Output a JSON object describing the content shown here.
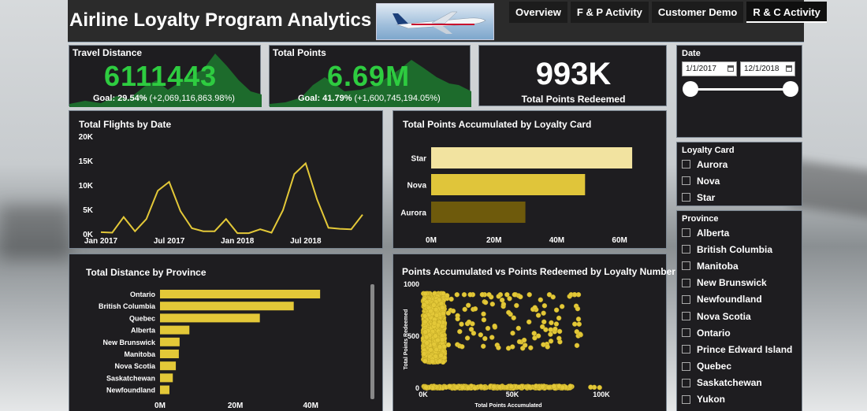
{
  "header": {
    "title": "Airline Loyalty Program Analytics",
    "tabs": [
      {
        "label": "Overview",
        "active": false
      },
      {
        "label": "F & P Activity",
        "active": false
      },
      {
        "label": "Customer Demo",
        "active": false
      },
      {
        "label": "R & C Activity",
        "active": true
      }
    ]
  },
  "kpis": {
    "travel_distance": {
      "label": "Travel Distance",
      "value": "6111443",
      "goal_pct": "Goal: 29.54%",
      "goal_delta": "(+2,069,116,863.98%)"
    },
    "total_points": {
      "label": "Total Points",
      "value": "6.69M",
      "goal_pct": "Goal: 41.79%",
      "goal_delta": "(+1,600,745,194.05%)"
    },
    "points_redeemed": {
      "value": "993K",
      "label": "Total Points Redeemed"
    }
  },
  "filters": {
    "date": {
      "title": "Date",
      "start": "1/1/2017",
      "end": "12/1/2018"
    },
    "loyalty_card": {
      "title": "Loyalty Card",
      "options": [
        "Aurora",
        "Nova",
        "Star"
      ]
    },
    "province": {
      "title": "Province",
      "options": [
        "Alberta",
        "British Columbia",
        "Manitoba",
        "New Brunswick",
        "Newfoundland",
        "Nova Scotia",
        "Ontario",
        "Prince Edward Island",
        "Quebec",
        "Saskatchewan",
        "Yukon"
      ]
    }
  },
  "colors": {
    "accent_yellow": "#e3c838",
    "kpi_green": "#2ecc40",
    "panel": "#1e1d20"
  },
  "chart_data": [
    {
      "id": "flights",
      "type": "line",
      "title": "Total Flights by Date",
      "x": [
        "2017-01",
        "2017-02",
        "2017-03",
        "2017-04",
        "2017-05",
        "2017-06",
        "2017-07",
        "2017-08",
        "2017-09",
        "2017-10",
        "2017-11",
        "2017-12",
        "2018-01",
        "2018-02",
        "2018-03",
        "2018-04",
        "2018-05",
        "2018-06",
        "2018-07",
        "2018-08",
        "2018-09",
        "2018-10",
        "2018-11",
        "2018-12"
      ],
      "values": [
        500,
        400,
        3600,
        700,
        3200,
        9000,
        10800,
        4800,
        1300,
        700,
        700,
        3200,
        300,
        300,
        1100,
        400,
        5000,
        12400,
        14600,
        7200,
        1400,
        1200,
        1100,
        4100
      ],
      "xticks": [
        "Jan 2017",
        "Jul 2017",
        "Jan 2018",
        "Jul 2018"
      ],
      "yticks": [
        "0K",
        "5K",
        "10K",
        "15K",
        "20K"
      ],
      "ylim": [
        0,
        20000
      ]
    },
    {
      "id": "loyalty",
      "type": "bar",
      "title": "Total Points Accumulated by Loyalty Card",
      "categories": [
        "Star",
        "Nova",
        "Aurora"
      ],
      "values": [
        64000000,
        49000000,
        30000000
      ],
      "colors": [
        "#f2e3a0",
        "#e0c53a",
        "#6e5a0c"
      ],
      "xticks": [
        "0M",
        "20M",
        "40M",
        "60M"
      ],
      "xlim": [
        0,
        70000000
      ]
    },
    {
      "id": "province",
      "type": "bar",
      "title": "Total Distance by Province",
      "categories": [
        "Ontario",
        "British Columbia",
        "Quebec",
        "Alberta",
        "New Brunswick",
        "Manitoba",
        "Nova Scotia",
        "Saskatchewan",
        "Newfoundland"
      ],
      "values": [
        42500000,
        35500000,
        26500000,
        7800000,
        5200000,
        5000000,
        4200000,
        3400000,
        2500000
      ],
      "xticks": [
        "0M",
        "20M",
        "40M"
      ],
      "xlim": [
        0,
        50000000
      ]
    },
    {
      "id": "scatter",
      "type": "scatter",
      "title": "Points Accumulated vs Points Redeemed by Loyalty Number",
      "xlabel": "Total Points Accumulated",
      "ylabel": "Total Points Redeemed",
      "xticks": [
        "0K",
        "50K",
        "100K"
      ],
      "yticks": [
        "0",
        "500",
        "1000"
      ],
      "xlim": [
        0,
        100000
      ],
      "ylim": [
        0,
        1000
      ]
    }
  ]
}
